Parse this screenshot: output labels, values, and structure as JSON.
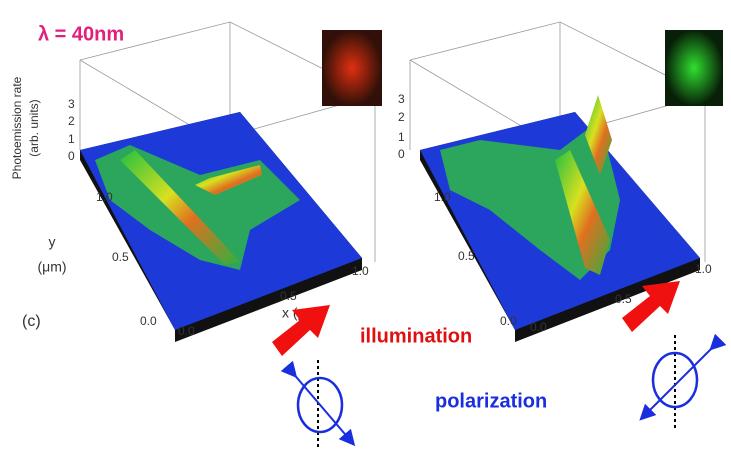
{
  "wavelength_label": "λ = 40nm",
  "panel_label": "(c)",
  "plots": [
    {
      "z_axis_label": [
        "Photoemission rate",
        "(arb. units)"
      ],
      "z_ticks": [
        "0",
        "1",
        "2",
        "3"
      ],
      "y_axis_label": [
        "y",
        "(μm)"
      ],
      "y_ticks": [
        "0.0",
        "0.5",
        "1.0"
      ],
      "x_axis_label": "x (μm)",
      "x_ticks": [
        "0.0",
        "0.5",
        "1.0"
      ]
    },
    {
      "z_ticks": [
        "0",
        "1",
        "2",
        "3"
      ],
      "y_ticks": [
        "0.0",
        "0.5",
        "1.0"
      ],
      "x_ticks": [
        "0.0",
        "0.5",
        "1.0"
      ]
    }
  ],
  "illumination_label": "illumination",
  "polarization_label": "polarization"
}
